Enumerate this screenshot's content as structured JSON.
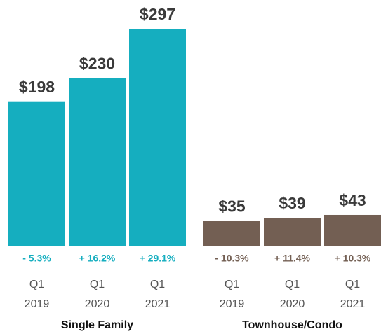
{
  "chart_data": {
    "type": "bar",
    "groups": [
      {
        "name": "Single Family",
        "color": "#15aebf",
        "change_color": "#15aebf",
        "categories": [
          [
            "Q1",
            "2019"
          ],
          [
            "Q1",
            "2020"
          ],
          [
            "Q1",
            "2021"
          ]
        ],
        "values": [
          198,
          230,
          297
        ],
        "value_labels": [
          "$198",
          "$230",
          "$297"
        ],
        "change_labels": [
          "- 5.3%",
          "+ 16.2%",
          "+ 29.1%"
        ]
      },
      {
        "name": "Townhouse/Condo",
        "color": "#735f53",
        "change_color": "#735f53",
        "categories": [
          [
            "Q1",
            "2019"
          ],
          [
            "Q1",
            "2020"
          ],
          [
            "Q1",
            "2021"
          ]
        ],
        "values": [
          35,
          39,
          43
        ],
        "value_labels": [
          "$35",
          "$39",
          "$43"
        ],
        "change_labels": [
          "- 10.3%",
          "+ 11.4%",
          "+ 10.3%"
        ]
      }
    ]
  }
}
